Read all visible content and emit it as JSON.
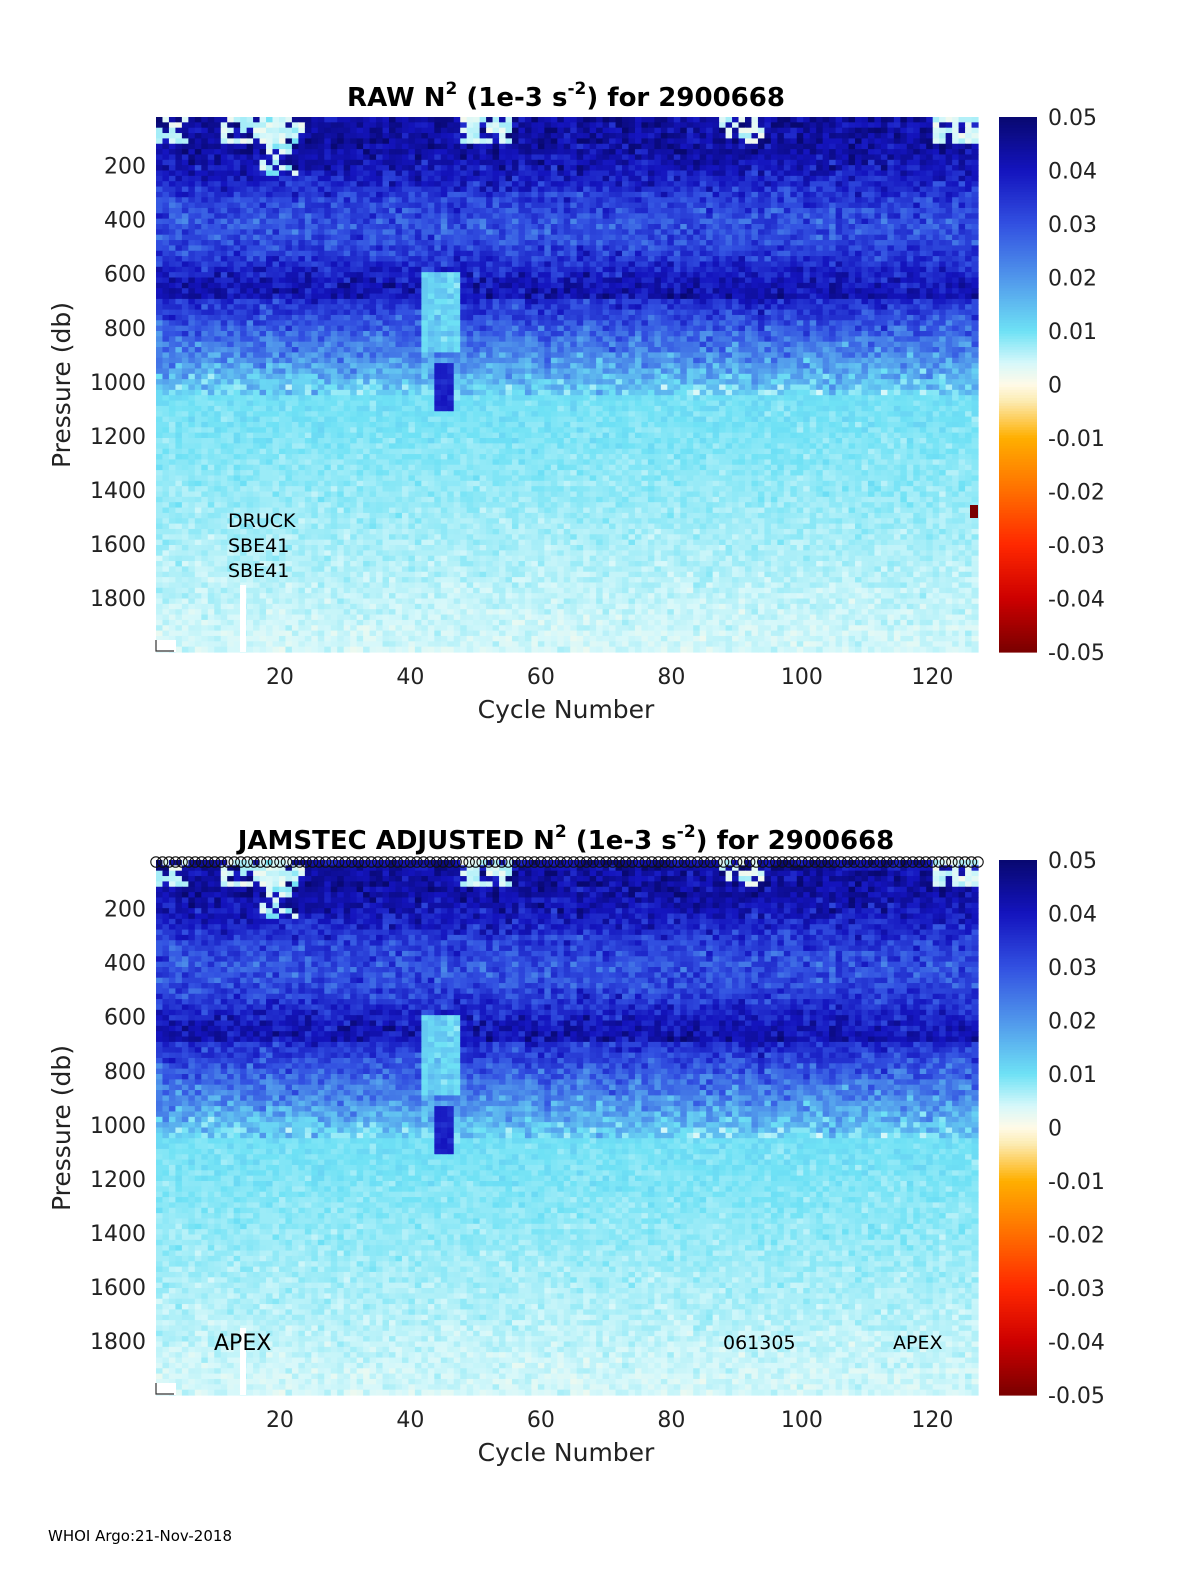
{
  "footer": "WHOI Argo:21-Nov-2018",
  "colorbar": {
    "ticks": [
      "0.05",
      "0.04",
      "0.03",
      "0.02",
      "0.01",
      "0",
      "-0.01",
      "-0.02",
      "-0.03",
      "-0.04",
      "-0.05"
    ],
    "range": [
      -0.05,
      0.05
    ]
  },
  "chart_data": [
    {
      "type": "heatmap",
      "title_main": "RAW N",
      "title_sup1": "2",
      "title_mid": " (1e-3 s",
      "title_sup2": "-2",
      "title_end": ") for 2900668",
      "xlabel": "Cycle Number",
      "ylabel": "Pressure (db)",
      "xticks": [
        "20",
        "40",
        "60",
        "80",
        "100",
        "120"
      ],
      "yticks": [
        "200",
        "400",
        "600",
        "800",
        "1000",
        "1200",
        "1400",
        "1600",
        "1800"
      ],
      "xlim": [
        1,
        127
      ],
      "ylim": [
        2000,
        20
      ],
      "annotations": [
        "DRUCK",
        "SBE41",
        "SBE41"
      ],
      "clim": [
        -0.05,
        0.05
      ]
    },
    {
      "type": "heatmap",
      "title_main": "JAMSTEC  ADJUSTED N",
      "title_sup1": "2",
      "title_mid": " (1e-3 s",
      "title_sup2": "-2",
      "title_end": ") for 2900668",
      "xlabel": "Cycle Number",
      "ylabel": "Pressure (db)",
      "xticks": [
        "20",
        "40",
        "60",
        "80",
        "100",
        "120"
      ],
      "yticks": [
        "200",
        "400",
        "600",
        "800",
        "1000",
        "1200",
        "1400",
        "1600",
        "1800"
      ],
      "xlim": [
        1,
        127
      ],
      "ylim": [
        2000,
        20
      ],
      "annotations": [
        "APEX",
        "061305",
        "APEX"
      ],
      "clim": [
        -0.05,
        0.05
      ]
    }
  ]
}
